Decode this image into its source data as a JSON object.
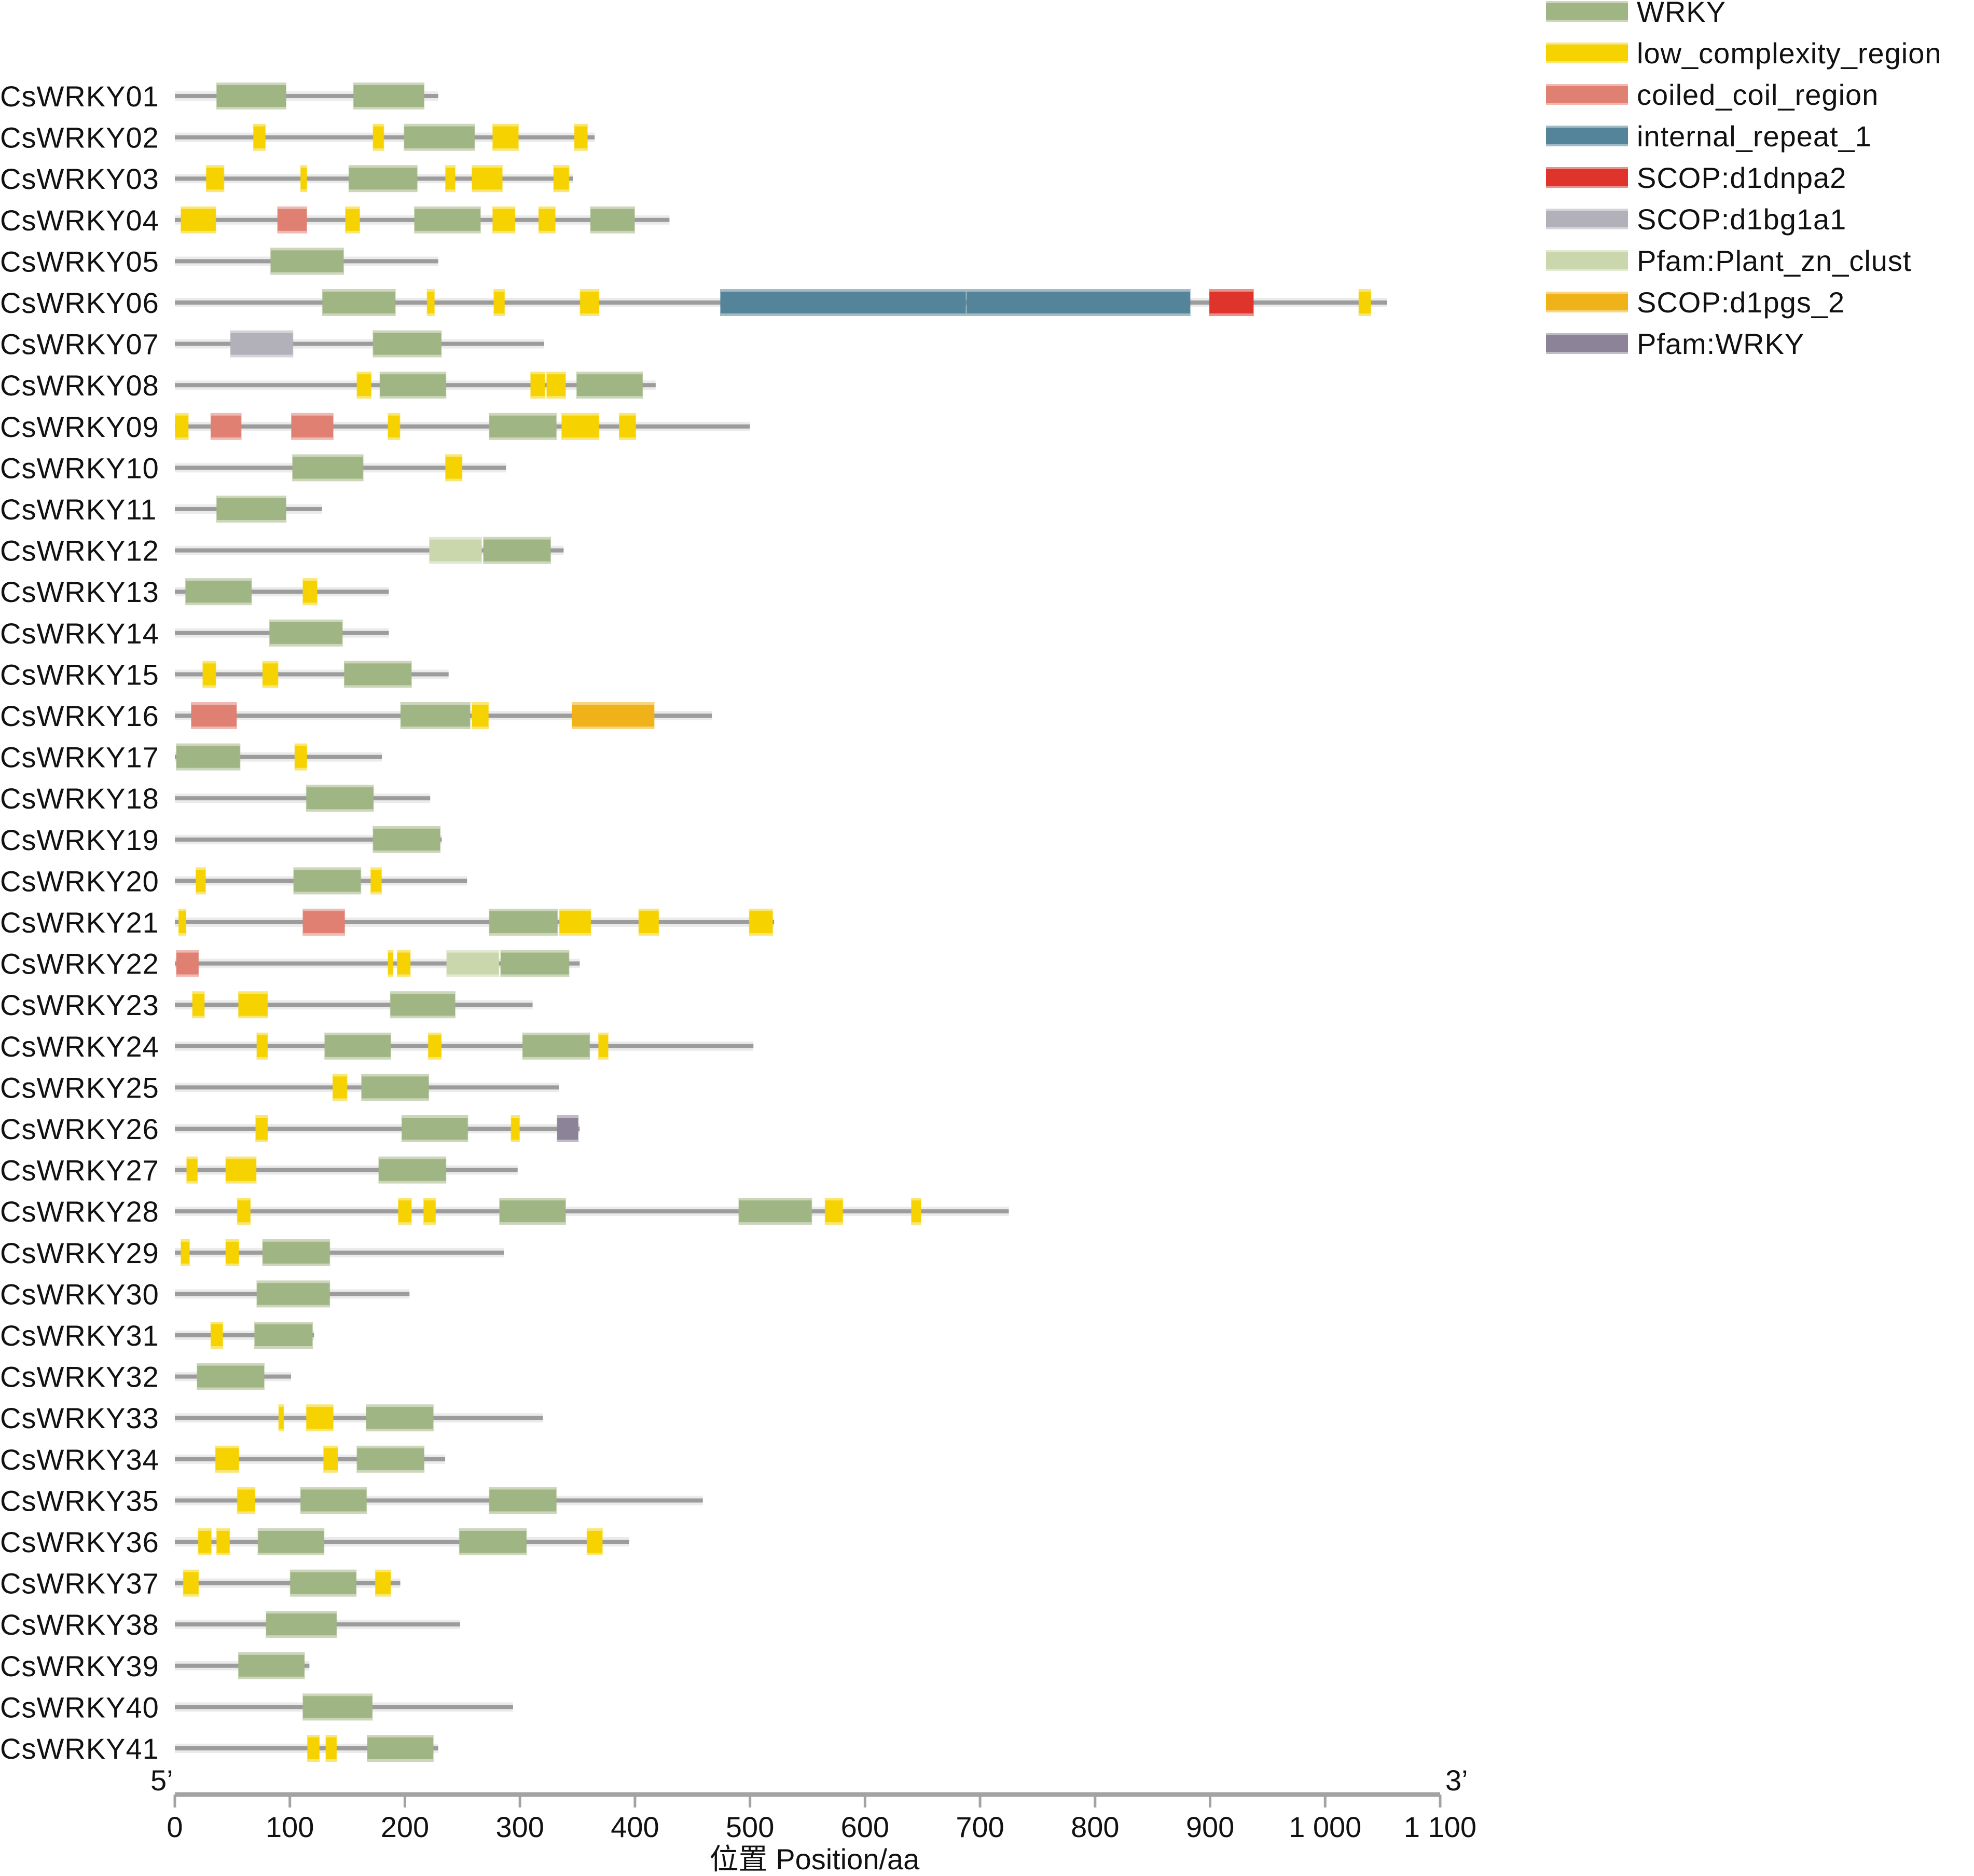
{
  "chart_data": {
    "type": "domain-diagram",
    "title": "",
    "xlabel": "位置 Position/aa",
    "xlim": [
      0,
      1100
    ],
    "x_ticks": [
      0,
      100,
      200,
      300,
      400,
      500,
      600,
      700,
      800,
      900,
      1000,
      1100
    ],
    "x_tick_labels": [
      "0",
      "100",
      "200",
      "300",
      "400",
      "500",
      "600",
      "700",
      "800",
      "900",
      "1 000",
      "1 100"
    ],
    "end_labels": {
      "left": "5’",
      "right": "3’"
    },
    "legend_position": "top-right",
    "legend": [
      {
        "key": "WRKY",
        "label": "WRKY",
        "color": "#a0b584"
      },
      {
        "key": "LCR",
        "label": "low_complexity_region",
        "color": "#f5d200"
      },
      {
        "key": "CC",
        "label": "coiled_coil_region",
        "color": "#e08072"
      },
      {
        "key": "IR",
        "label": "internal_repeat_1",
        "color": "#538499"
      },
      {
        "key": "D1DNPA2",
        "label": "SCOP:d1dnpa2",
        "color": "#de342c"
      },
      {
        "key": "D1BG1A1",
        "label": "SCOP:d1bg1a1",
        "color": "#b2b1ba"
      },
      {
        "key": "PZN",
        "label": "Pfam:Plant_zn_clust",
        "color": "#cad7ad"
      },
      {
        "key": "D1PGS2",
        "label": "SCOP:d1pgs_2",
        "color": "#f0b219"
      },
      {
        "key": "PWRKY",
        "label": "Pfam:WRKY",
        "color": "#8d8398"
      }
    ],
    "proteins": [
      {
        "name": "CsWRKY01",
        "length": 229,
        "domains": [
          [
            "WRKY",
            36,
            97
          ],
          [
            "WRKY",
            155,
            217
          ]
        ]
      },
      {
        "name": "CsWRKY02",
        "length": 365,
        "domains": [
          [
            "LCR",
            68,
            79
          ],
          [
            "LCR",
            172,
            182
          ],
          [
            "WRKY",
            199,
            261
          ],
          [
            "LCR",
            276,
            299
          ],
          [
            "LCR",
            347,
            359
          ]
        ]
      },
      {
        "name": "CsWRKY03",
        "length": 346,
        "domains": [
          [
            "LCR",
            27,
            43
          ],
          [
            "LCR",
            109,
            115
          ],
          [
            "WRKY",
            151,
            211
          ],
          [
            "LCR",
            235,
            244
          ],
          [
            "LCR",
            258,
            285
          ],
          [
            "LCR",
            329,
            343
          ]
        ]
      },
      {
        "name": "CsWRKY04",
        "length": 430,
        "domains": [
          [
            "LCR",
            5,
            36
          ],
          [
            "CC",
            89,
            115
          ],
          [
            "LCR",
            148,
            161
          ],
          [
            "WRKY",
            208,
            266
          ],
          [
            "LCR",
            276,
            296
          ],
          [
            "LCR",
            316,
            331
          ],
          [
            "WRKY",
            361,
            400
          ]
        ]
      },
      {
        "name": "CsWRKY05",
        "length": 229,
        "domains": [
          [
            "WRKY",
            83,
            147
          ]
        ]
      },
      {
        "name": "CsWRKY06",
        "length": 1054,
        "domains": [
          [
            "WRKY",
            128,
            192
          ],
          [
            "LCR",
            219,
            226
          ],
          [
            "LCR",
            277,
            287
          ],
          [
            "LCR",
            352,
            369
          ],
          [
            "IR",
            474,
            688
          ],
          [
            "IR",
            688,
            883
          ],
          [
            "D1DNPA2",
            899,
            938
          ],
          [
            "LCR",
            1029,
            1040
          ]
        ]
      },
      {
        "name": "CsWRKY07",
        "length": 321,
        "domains": [
          [
            "D1BG1A1",
            48,
            103
          ],
          [
            "WRKY",
            172,
            232
          ]
        ]
      },
      {
        "name": "CsWRKY08",
        "length": 418,
        "domains": [
          [
            "LCR",
            158,
            171
          ],
          [
            "WRKY",
            178,
            236
          ],
          [
            "LCR",
            309,
            322
          ],
          [
            "LCR",
            323,
            340
          ],
          [
            "WRKY",
            349,
            407
          ]
        ]
      },
      {
        "name": "CsWRKY09",
        "length": 500,
        "domains": [
          [
            "LCR",
            0,
            12
          ],
          [
            "CC",
            31,
            58
          ],
          [
            "CC",
            101,
            138
          ],
          [
            "LCR",
            185,
            196
          ],
          [
            "WRKY",
            273,
            332
          ],
          [
            "LCR",
            336,
            369
          ],
          [
            "LCR",
            386,
            401
          ]
        ]
      },
      {
        "name": "CsWRKY10",
        "length": 288,
        "domains": [
          [
            "WRKY",
            102,
            164
          ],
          [
            "LCR",
            235,
            250
          ]
        ]
      },
      {
        "name": "CsWRKY11",
        "length": 128,
        "domains": [
          [
            "WRKY",
            36,
            97
          ]
        ]
      },
      {
        "name": "CsWRKY12",
        "length": 338,
        "domains": [
          [
            "PZN",
            221,
            267
          ],
          [
            "WRKY",
            268,
            327
          ]
        ]
      },
      {
        "name": "CsWRKY13",
        "length": 186,
        "domains": [
          [
            "WRKY",
            9,
            67
          ],
          [
            "LCR",
            111,
            124
          ]
        ]
      },
      {
        "name": "CsWRKY14",
        "length": 186,
        "domains": [
          [
            "WRKY",
            82,
            146
          ]
        ]
      },
      {
        "name": "CsWRKY15",
        "length": 238,
        "domains": [
          [
            "LCR",
            24,
            36
          ],
          [
            "LCR",
            76,
            90
          ],
          [
            "WRKY",
            147,
            206
          ]
        ]
      },
      {
        "name": "CsWRKY16",
        "length": 467,
        "domains": [
          [
            "CC",
            14,
            54
          ],
          [
            "WRKY",
            196,
            257
          ],
          [
            "LCR",
            258,
            273
          ],
          [
            "D1PGS2",
            345,
            417
          ]
        ]
      },
      {
        "name": "CsWRKY17",
        "length": 180,
        "domains": [
          [
            "WRKY",
            1,
            57
          ],
          [
            "LCR",
            104,
            115
          ]
        ]
      },
      {
        "name": "CsWRKY18",
        "length": 222,
        "domains": [
          [
            "WRKY",
            114,
            173
          ]
        ]
      },
      {
        "name": "CsWRKY19",
        "length": 232,
        "domains": [
          [
            "WRKY",
            172,
            231
          ]
        ]
      },
      {
        "name": "CsWRKY20",
        "length": 254,
        "domains": [
          [
            "LCR",
            18,
            27
          ],
          [
            "WRKY",
            103,
            162
          ],
          [
            "LCR",
            170,
            180
          ]
        ]
      },
      {
        "name": "CsWRKY21",
        "length": 521,
        "domains": [
          [
            "LCR",
            3,
            10
          ],
          [
            "CC",
            111,
            148
          ],
          [
            "WRKY",
            273,
            333
          ],
          [
            "LCR",
            334,
            362
          ],
          [
            "LCR",
            403,
            421
          ],
          [
            "LCR",
            499,
            520
          ]
        ]
      },
      {
        "name": "CsWRKY22",
        "length": 352,
        "domains": [
          [
            "CC",
            1,
            21
          ],
          [
            "LCR",
            185,
            190
          ],
          [
            "LCR",
            193,
            205
          ],
          [
            "PZN",
            236,
            282
          ],
          [
            "WRKY",
            283,
            343
          ]
        ]
      },
      {
        "name": "CsWRKY23",
        "length": 311,
        "domains": [
          [
            "LCR",
            15,
            26
          ],
          [
            "LCR",
            55,
            81
          ],
          [
            "WRKY",
            187,
            244
          ]
        ]
      },
      {
        "name": "CsWRKY24",
        "length": 503,
        "domains": [
          [
            "LCR",
            71,
            81
          ],
          [
            "WRKY",
            130,
            188
          ],
          [
            "LCR",
            220,
            232
          ],
          [
            "WRKY",
            302,
            361
          ],
          [
            "LCR",
            368,
            377
          ]
        ]
      },
      {
        "name": "CsWRKY25",
        "length": 334,
        "domains": [
          [
            "LCR",
            137,
            150
          ],
          [
            "WRKY",
            162,
            221
          ]
        ]
      },
      {
        "name": "CsWRKY26",
        "length": 352,
        "domains": [
          [
            "LCR",
            70,
            81
          ],
          [
            "WRKY",
            197,
            255
          ],
          [
            "LCR",
            292,
            300
          ],
          [
            "PWRKY",
            332,
            351
          ]
        ]
      },
      {
        "name": "CsWRKY27",
        "length": 298,
        "domains": [
          [
            "LCR",
            10,
            20
          ],
          [
            "LCR",
            44,
            71
          ],
          [
            "WRKY",
            177,
            236
          ]
        ]
      },
      {
        "name": "CsWRKY28",
        "length": 725,
        "domains": [
          [
            "LCR",
            54,
            66
          ],
          [
            "LCR",
            194,
            206
          ],
          [
            "LCR",
            216,
            227
          ],
          [
            "WRKY",
            282,
            340
          ],
          [
            "WRKY",
            490,
            554
          ],
          [
            "LCR",
            565,
            581
          ],
          [
            "LCR",
            640,
            649
          ]
        ]
      },
      {
        "name": "CsWRKY29",
        "length": 286,
        "domains": [
          [
            "LCR",
            5,
            13
          ],
          [
            "LCR",
            44,
            56
          ],
          [
            "WRKY",
            76,
            135
          ]
        ]
      },
      {
        "name": "CsWRKY30",
        "length": 204,
        "domains": [
          [
            "WRKY",
            71,
            135
          ]
        ]
      },
      {
        "name": "CsWRKY31",
        "length": 121,
        "domains": [
          [
            "LCR",
            31,
            42
          ],
          [
            "WRKY",
            69,
            120
          ]
        ]
      },
      {
        "name": "CsWRKY32",
        "length": 101,
        "domains": [
          [
            "WRKY",
            19,
            78
          ]
        ]
      },
      {
        "name": "CsWRKY33",
        "length": 320,
        "domains": [
          [
            "LCR",
            90,
            95
          ],
          [
            "LCR",
            114,
            138
          ],
          [
            "WRKY",
            166,
            225
          ]
        ]
      },
      {
        "name": "CsWRKY34",
        "length": 235,
        "domains": [
          [
            "LCR",
            35,
            56
          ],
          [
            "LCR",
            129,
            142
          ],
          [
            "WRKY",
            158,
            217
          ]
        ]
      },
      {
        "name": "CsWRKY35",
        "length": 459,
        "domains": [
          [
            "LCR",
            54,
            70
          ],
          [
            "WRKY",
            109,
            167
          ],
          [
            "WRKY",
            273,
            332
          ]
        ]
      },
      {
        "name": "CsWRKY36",
        "length": 395,
        "domains": [
          [
            "LCR",
            20,
            32
          ],
          [
            "LCR",
            36,
            48
          ],
          [
            "WRKY",
            72,
            130
          ],
          [
            "WRKY",
            247,
            306
          ],
          [
            "LCR",
            358,
            372
          ]
        ]
      },
      {
        "name": "CsWRKY37",
        "length": 196,
        "domains": [
          [
            "LCR",
            7,
            21
          ],
          [
            "WRKY",
            100,
            158
          ],
          [
            "LCR",
            174,
            188
          ]
        ]
      },
      {
        "name": "CsWRKY38",
        "length": 248,
        "domains": [
          [
            "WRKY",
            79,
            141
          ]
        ]
      },
      {
        "name": "CsWRKY39",
        "length": 117,
        "domains": [
          [
            "WRKY",
            55,
            113
          ]
        ]
      },
      {
        "name": "CsWRKY40",
        "length": 294,
        "domains": [
          [
            "WRKY",
            111,
            172
          ]
        ]
      },
      {
        "name": "CsWRKY41",
        "length": 229,
        "domains": [
          [
            "LCR",
            115,
            126
          ],
          [
            "LCR",
            131,
            141
          ],
          [
            "WRKY",
            167,
            225
          ]
        ]
      }
    ]
  }
}
